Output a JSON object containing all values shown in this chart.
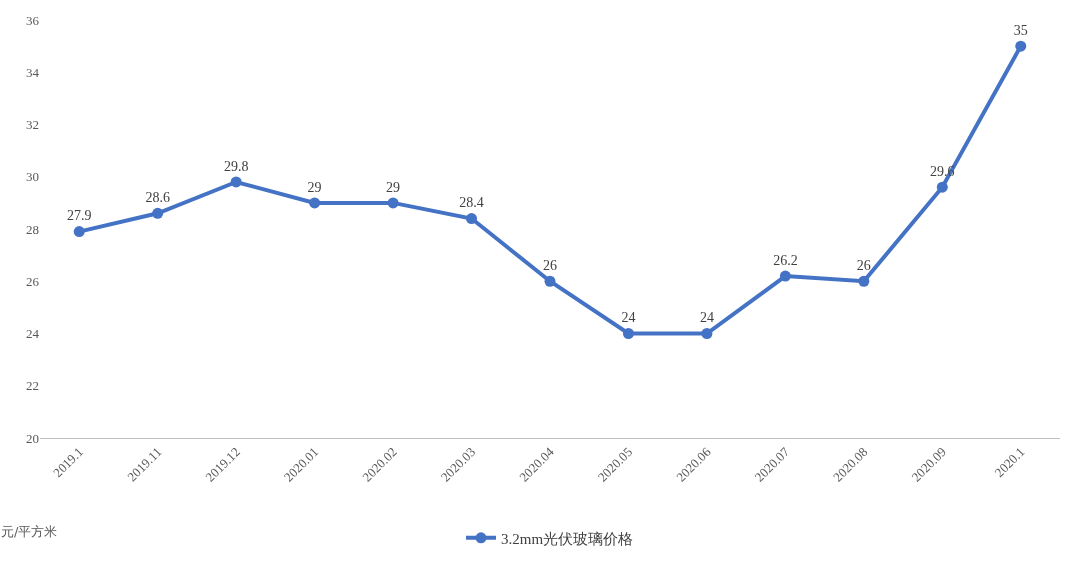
{
  "chart_data": {
    "type": "line",
    "categories": [
      "2019.1",
      "2019.11",
      "2019.12",
      "2020.01",
      "2020.02",
      "2020.03",
      "2020.04",
      "2020.05",
      "2020.06",
      "2020.07",
      "2020.08",
      "2020.09",
      "2020.1"
    ],
    "series": [
      {
        "name": "3.2mm光伏玻璃价格",
        "color": "#4472c4",
        "values": [
          27.9,
          28.6,
          29.8,
          29,
          29,
          28.4,
          26,
          24,
          24,
          26.2,
          26,
          29.6,
          35
        ]
      }
    ],
    "ylim": [
      20,
      36
    ],
    "yticks": [
      20,
      22,
      24,
      26,
      28,
      30,
      32,
      34,
      36
    ],
    "data_labels": true,
    "marker": "circle",
    "line_style": "solid",
    "grid": false,
    "legend": "bottom",
    "annotations": [
      "元/平方米"
    ]
  }
}
